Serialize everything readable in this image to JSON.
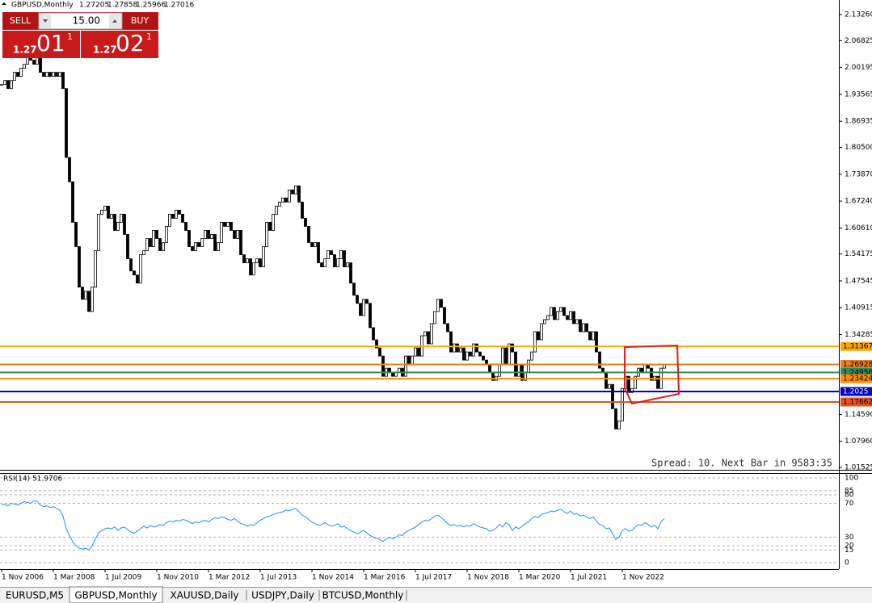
{
  "window": {
    "header": "GBPUSD,Monthly",
    "last_bar": [
      1.27205,
      1.27858,
      1.25966,
      1.27016
    ],
    "spread_info": "Spread: 10. Next Bar in 9583:35",
    "tabs": [
      "EURUSD,M5",
      "GBPUSD,Monthly",
      "XAUUSD,Daily",
      "USDJPY,Daily",
      "BTCUSD,Monthly"
    ]
  },
  "trade_panel": {
    "sell": "SELL",
    "buy": "BUY",
    "lot": "15.00",
    "sell_price": [
      "1.27",
      "01",
      "1"
    ],
    "buy_price": [
      "1.27",
      "02",
      "1"
    ]
  },
  "chart_data": [
    {
      "type": "candlestick",
      "title": "GBPUSD,Monthly",
      "xlim": [
        -0.5,
        259
      ],
      "ylim": [
        1.0093,
        2.1685
      ],
      "xticks": [
        {
          "value": 0,
          "label": "1 Nov 2006"
        },
        {
          "value": 16,
          "label": "1 Mar 2008"
        },
        {
          "value": 32,
          "label": "1 Jul 2009"
        },
        {
          "value": 48,
          "label": "1 Nov 2010"
        },
        {
          "value": 64,
          "label": "1 Mar 2012"
        },
        {
          "value": 80,
          "label": "1 Jul 2013"
        },
        {
          "value": 96,
          "label": "1 Nov 2014"
        },
        {
          "value": 112,
          "label": "1 Mar 2016"
        },
        {
          "value": 128,
          "label": "1 Jul 2017"
        },
        {
          "value": 144,
          "label": "1 Nov 2018"
        },
        {
          "value": 160,
          "label": "1 Mar 2020"
        },
        {
          "value": 176,
          "label": "1 Jul 2021"
        },
        {
          "value": 192,
          "label": "1 Nov 2022"
        }
      ],
      "yticks": [
        {
          "value": 2.1326,
          "label": "2.13260"
        },
        2.06825,
        2.00195,
        1.93565,
        1.86935,
        {
          "value": 1.805,
          "label": "1.80500"
        },
        {
          "value": 1.7387,
          "label": "1.73870"
        },
        {
          "value": 1.6724,
          "label": "1.67240"
        },
        {
          "value": 1.6061,
          "label": "1.60610"
        },
        1.54175,
        1.47545,
        1.40915,
        1.34285,
        {
          "value": 1.1459,
          "label": "1.14590"
        },
        {
          "value": 1.0796,
          "label": "1.07960"
        },
        1.01525
      ],
      "close": [
        1.96,
        1.97,
        1.95,
        1.97,
        1.99,
        1.98,
        2.0,
        2.01,
        2.03,
        2.02,
        2.01,
        2.04,
        1.99,
        1.98,
        1.99,
        1.98,
        1.99,
        1.98,
        1.99,
        1.95,
        1.78,
        1.72,
        1.62,
        1.56,
        1.46,
        1.43,
        1.45,
        1.4,
        1.46,
        1.55,
        1.64,
        1.65,
        1.66,
        1.63,
        1.64,
        1.6,
        1.62,
        1.64,
        1.59,
        1.53,
        1.5,
        1.49,
        1.47,
        1.54,
        1.55,
        1.58,
        1.56,
        1.6,
        1.58,
        1.55,
        1.57,
        1.61,
        1.64,
        1.63,
        1.65,
        1.64,
        1.62,
        1.6,
        1.56,
        1.55,
        1.57,
        1.56,
        1.58,
        1.6,
        1.58,
        1.59,
        1.55,
        1.57,
        1.62,
        1.61,
        1.62,
        1.6,
        1.58,
        1.6,
        1.54,
        1.52,
        1.53,
        1.49,
        1.52,
        1.53,
        1.51,
        1.56,
        1.62,
        1.6,
        1.64,
        1.66,
        1.67,
        1.68,
        1.67,
        1.7,
        1.69,
        1.71,
        1.67,
        1.63,
        1.61,
        1.57,
        1.56,
        1.57,
        1.52,
        1.51,
        1.53,
        1.55,
        1.54,
        1.51,
        1.53,
        1.55,
        1.51,
        1.52,
        1.47,
        1.44,
        1.42,
        1.39,
        1.43,
        1.42,
        1.36,
        1.33,
        1.31,
        1.29,
        1.24,
        1.26,
        1.25,
        1.24,
        1.25,
        1.26,
        1.24,
        1.29,
        1.27,
        1.29,
        1.31,
        1.29,
        1.34,
        1.35,
        1.32,
        1.37,
        1.4,
        1.43,
        1.41,
        1.37,
        1.35,
        1.3,
        1.32,
        1.3,
        1.31,
        1.28,
        1.3,
        1.29,
        1.32,
        1.3,
        1.29,
        1.28,
        1.27,
        1.25,
        1.23,
        1.24,
        1.27,
        1.31,
        1.27,
        1.32,
        1.3,
        1.24,
        1.27,
        1.23,
        1.25,
        1.28,
        1.3,
        1.35,
        1.33,
        1.37,
        1.38,
        1.39,
        1.41,
        1.38,
        1.4,
        1.41,
        1.39,
        1.38,
        1.4,
        1.37,
        1.38,
        1.35,
        1.37,
        1.35,
        1.33,
        1.35,
        1.3,
        1.26,
        1.25,
        1.21,
        1.22,
        1.16,
        1.11,
        1.13,
        1.21,
        1.24,
        1.2,
        1.21,
        1.24,
        1.26,
        1.25,
        1.27,
        1.26,
        1.23,
        1.24,
        1.21,
        1.26,
        1.27
      ],
      "levels": [
        {
          "value": 1.31367,
          "color": "#ffa500"
        },
        {
          "value": 1.26928,
          "color": "#e67e22"
        },
        {
          "value": 1.24956,
          "color": "#2e8b57"
        },
        {
          "value": 1.23424,
          "color": "#ff8c00"
        },
        {
          "value": 1.2025,
          "color": "#0000cd"
        },
        {
          "value": 1.17662,
          "color": "#e8501a"
        }
      ]
    },
    {
      "type": "line",
      "title": "RSI(14) 51.9706",
      "color": "#1e90ff",
      "xlim": [
        -0.5,
        259
      ],
      "ylim": [
        0,
        100
      ],
      "yticks": [
        0,
        15,
        20,
        30,
        70,
        80,
        85,
        100
      ],
      "values": [
        68,
        69,
        67,
        70,
        69,
        68,
        70,
        72,
        71,
        70,
        73,
        72,
        68,
        66,
        67,
        65,
        66,
        64,
        62,
        55,
        40,
        32,
        25,
        20,
        17,
        16,
        17,
        15,
        20,
        28,
        35,
        38,
        40,
        41,
        40,
        42,
        38,
        41,
        42,
        39,
        36,
        35,
        37,
        40,
        43,
        41,
        44,
        42,
        43,
        45,
        44,
        47,
        49,
        48,
        50,
        49,
        51,
        50,
        48,
        46,
        48,
        47,
        49,
        50,
        48,
        51,
        53,
        52,
        54,
        53,
        51,
        50,
        52,
        49,
        46,
        45,
        43,
        45,
        44,
        47,
        50,
        52,
        54,
        55,
        57,
        58,
        59,
        60,
        62,
        61,
        63,
        64,
        60,
        56,
        54,
        51,
        48,
        46,
        44,
        45,
        47,
        45,
        43,
        44,
        46,
        42,
        43,
        40,
        38,
        36,
        34,
        36,
        38,
        35,
        32,
        30,
        29,
        27,
        25,
        28,
        30,
        28,
        30,
        33,
        32,
        36,
        38,
        40,
        42,
        45,
        48,
        50,
        49,
        52,
        55,
        56,
        53,
        50,
        46,
        44,
        45,
        43,
        44,
        42,
        44,
        43,
        46,
        44,
        42,
        41,
        40,
        37,
        38,
        41,
        45,
        42,
        47,
        45,
        38,
        42,
        40,
        43,
        46,
        48,
        52,
        55,
        53,
        57,
        58,
        59,
        61,
        60,
        62,
        63,
        60,
        58,
        61,
        57,
        58,
        55,
        56,
        54,
        52,
        54,
        49,
        45,
        44,
        40,
        41,
        34,
        27,
        30,
        38,
        40,
        37,
        38,
        42,
        45,
        44,
        47,
        45,
        42,
        44,
        40,
        48,
        52
      ]
    }
  ]
}
